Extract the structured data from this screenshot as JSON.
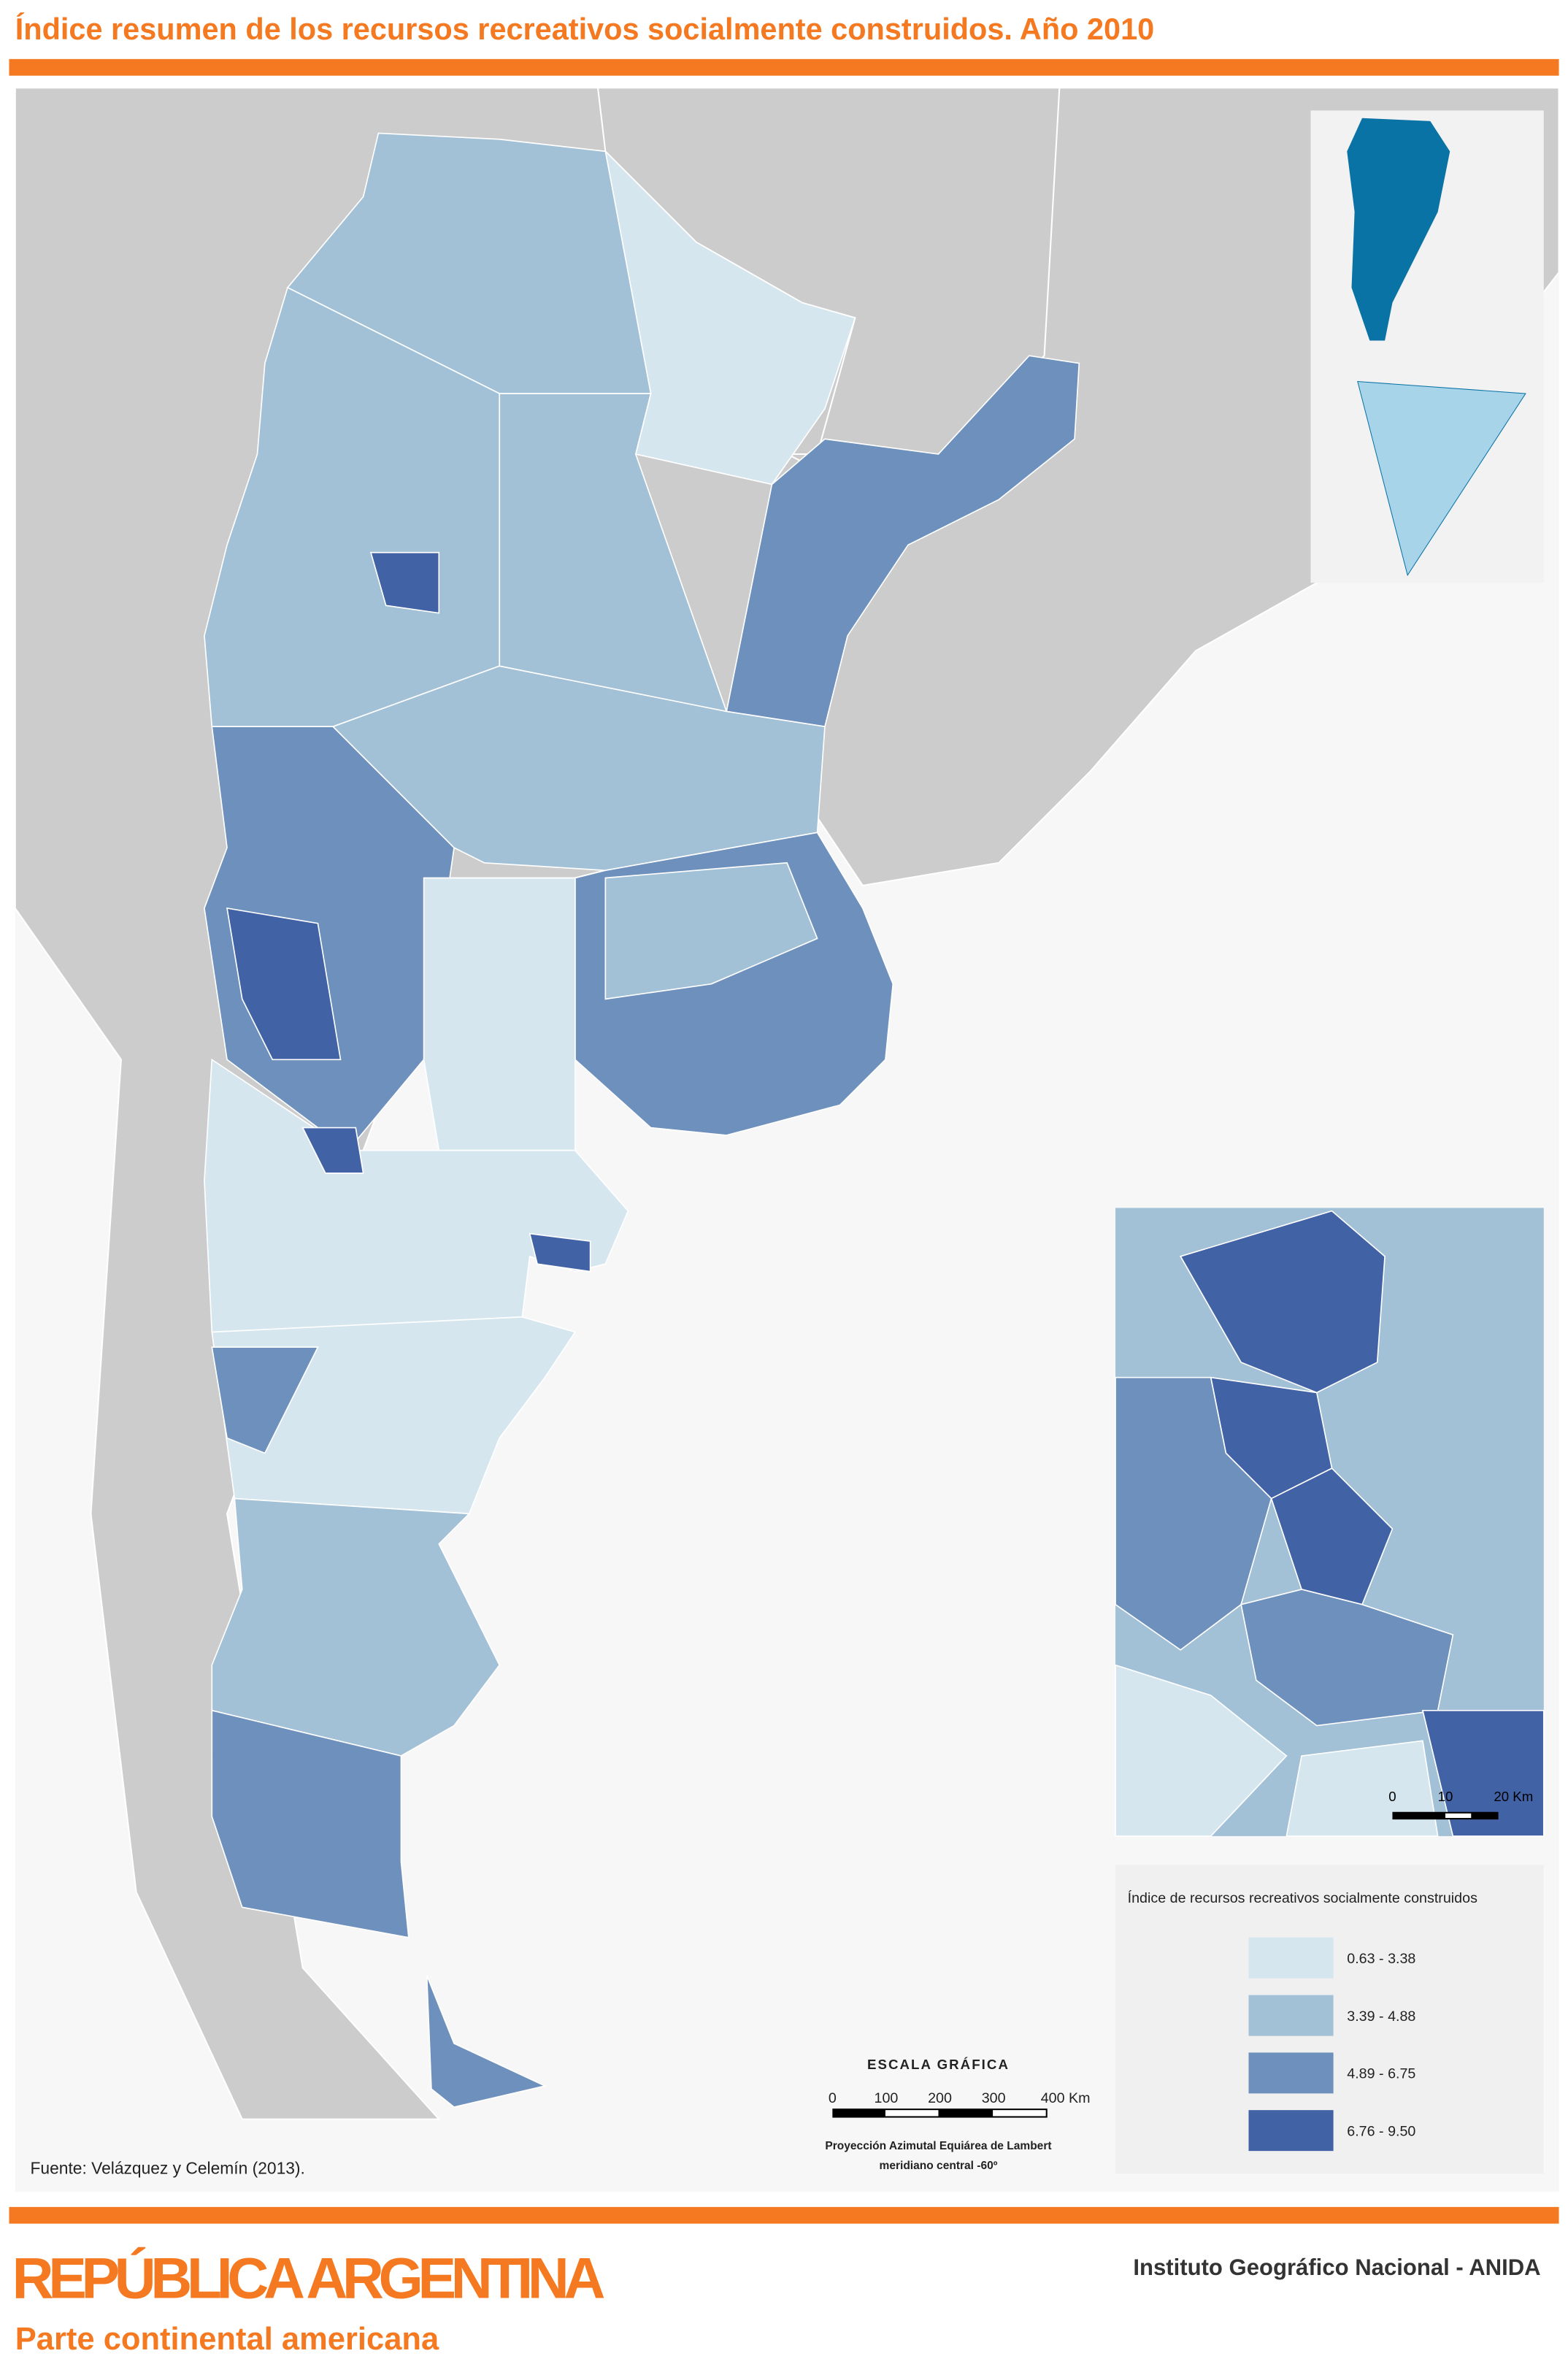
{
  "title": "Índice resumen de los recursos recreativos socialmente construidos. Año 2010",
  "source": "Fuente: Velázquez y Celemín (2013).",
  "legend": {
    "title": "Índice de recursos recreativos socialmente construidos",
    "items": [
      {
        "label": "0.63 - 3.38",
        "color": "#d6e6ef"
      },
      {
        "label": "3.39 - 4.88",
        "color": "#a3c1d6"
      },
      {
        "label": "4.89 - 6.75",
        "color": "#6e90bc"
      },
      {
        "label": "6.76 - 9.50",
        "color": "#4262a6"
      }
    ]
  },
  "scale": {
    "title": "ESCALA GRÁFICA",
    "labels": [
      "0",
      "100",
      "200",
      "300",
      "400 Km"
    ],
    "projection": [
      "Proyección Azimutal Equiárea de Lambert",
      "meridiano central -60º"
    ]
  },
  "inset_scale": {
    "labels": [
      "0",
      "10",
      "20 Km"
    ]
  },
  "footer": {
    "title": "REPÚBLICA ARGENTINA",
    "subtitle": "Parte continental americana",
    "institution": "Instituto Geográfico Nacional - ANIDA"
  }
}
